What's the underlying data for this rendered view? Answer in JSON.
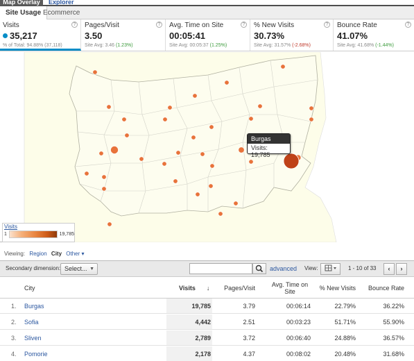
{
  "tabs": {
    "map_overlay": "Map Overlay",
    "explorer": "Explorer"
  },
  "subtabs": {
    "site_usage": "Site Usage",
    "ecommerce": "Ecommerce"
  },
  "metrics": [
    {
      "label": "Visits",
      "value": "35,217",
      "sub_prefix": "% of Total: 94.88% (37,118)",
      "sub_delta": "",
      "delta_class": ""
    },
    {
      "label": "Pages/Visit",
      "value": "3.50",
      "sub_prefix": "Site Avg: 3.46 ",
      "sub_delta": "(1.23%)",
      "delta_class": "pos"
    },
    {
      "label": "Avg. Time on Site",
      "value": "00:05:41",
      "sub_prefix": "Site Avg: 00:05:37 ",
      "sub_delta": "(1.25%)",
      "delta_class": "pos"
    },
    {
      "label": "% New Visits",
      "value": "30.73%",
      "sub_prefix": "Site Avg: 31.57% ",
      "sub_delta": "(-2.68%)",
      "delta_class": "neg"
    },
    {
      "label": "Bounce Rate",
      "value": "41.07%",
      "sub_prefix": "Site Avg: 41.68% ",
      "sub_delta": "(-1.44%)",
      "delta_class": "pos"
    }
  ],
  "help_glyph": "?",
  "tooltip": {
    "city": "Burgas",
    "text": "Visits: 19,785"
  },
  "legend": {
    "title": "Visits",
    "min": "1",
    "max": "19,785"
  },
  "viewing": {
    "label": "Viewing:",
    "region": "Region",
    "city": "City",
    "other": "Other ▾"
  },
  "toolbar": {
    "secondary_label": "Secondary dimension:",
    "select_label": "Select...",
    "advanced": "advanced",
    "view_label": "View:",
    "pager": "1 - 10 of 33",
    "prev": "‹",
    "next": "›"
  },
  "table": {
    "headers": {
      "city": "City",
      "visits": "Visits",
      "pages": "Pages/Visit",
      "avg_time": "Avg. Time on Site",
      "new_visits": "% New Visits",
      "bounce": "Bounce Rate"
    },
    "rows": [
      {
        "n": "1.",
        "city": "Burgas",
        "visits": "19,785",
        "pages": "3.79",
        "time": "00:06:14",
        "new": "22.79%",
        "bounce": "36.22%"
      },
      {
        "n": "2.",
        "city": "Sofia",
        "visits": "4,442",
        "pages": "2.51",
        "time": "00:03:23",
        "new": "51.71%",
        "bounce": "55.90%"
      },
      {
        "n": "3.",
        "city": "Sliven",
        "visits": "2,789",
        "pages": "3.72",
        "time": "00:06:40",
        "new": "24.88%",
        "bounce": "36.57%"
      },
      {
        "n": "4.",
        "city": "Pomorie",
        "visits": "2,178",
        "pages": "4.37",
        "time": "00:08:02",
        "new": "20.48%",
        "bounce": "31.68%"
      }
    ]
  },
  "colors": {
    "accent": "#058dc7",
    "link": "#2b57a0",
    "marker": "#e8733a",
    "marker_big": "#c0441a",
    "land": "#fdfde9",
    "sea": "#e6eef8"
  }
}
